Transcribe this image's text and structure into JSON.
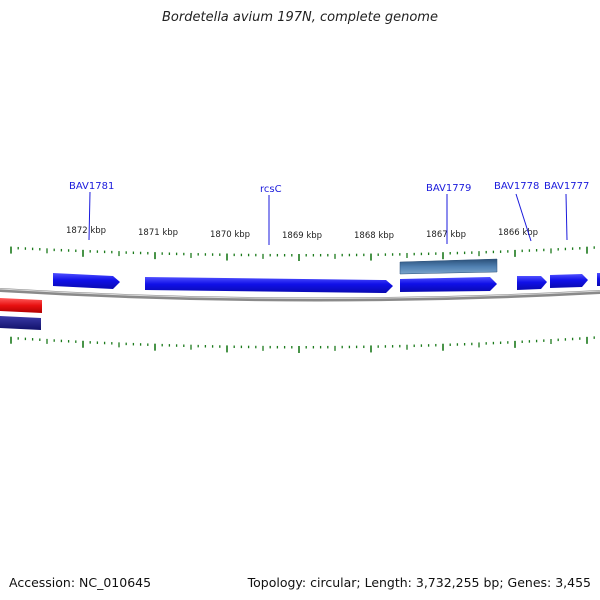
{
  "header": {
    "title": "Bordetella avium 197N, complete genome"
  },
  "footer": {
    "accession": "Accession: NC_010645",
    "summary": "Topology: circular; Length: 3,732,255 bp; Genes: 3,455"
  },
  "map": {
    "kbp_labels": [
      "1872 kbp",
      "1871 kbp",
      "1870 kbp",
      "1869 kbp",
      "1868 kbp",
      "1867 kbp",
      "1866 kbp"
    ],
    "gene_labels": [
      "BAV1781",
      "rcsC",
      "BAV1779",
      "BAV1778",
      "BAV1777"
    ],
    "colors": {
      "forward_gene": "#1414e6",
      "reverse_gene": "#1c1c80",
      "rna_gene": "#e61414",
      "highlight_gene": "#4f7fb0",
      "tick": "#1b7a1b",
      "backbone": "#8a8a8a",
      "label": "#1a1adc"
    }
  }
}
